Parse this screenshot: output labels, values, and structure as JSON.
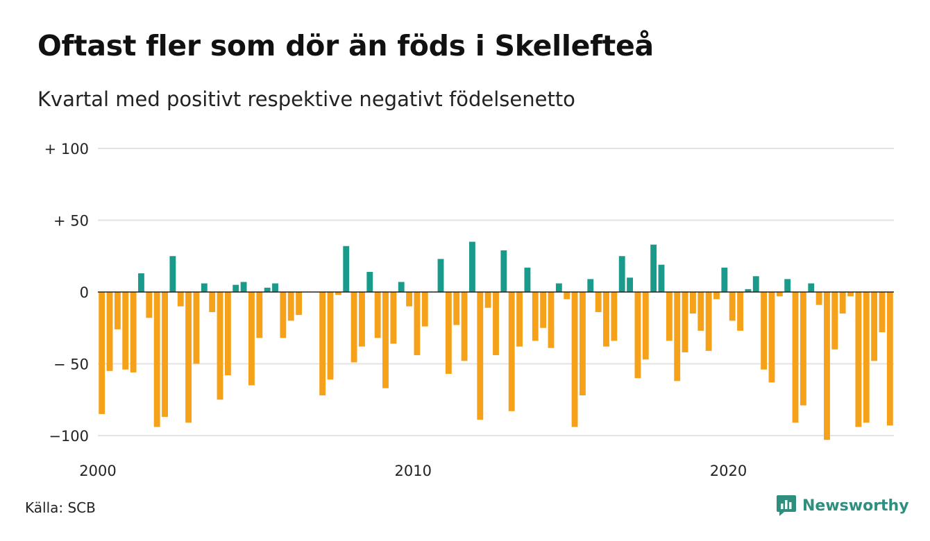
{
  "title": "Oftast fler som dör än föds i Skellefteå",
  "subtitle": "Kvartal med positivt respektive negativt födelsenetto",
  "source": "Källa: SCB",
  "brand": {
    "name": "Newsworthy",
    "icon": "newsworthy-chart-logo-icon"
  },
  "colors": {
    "positive": "#1a9a8a",
    "negative": "#f5a11a",
    "gridline": "#e3e3e3",
    "zero_line": "#222222"
  },
  "chart_data": {
    "type": "bar",
    "xlabel": "",
    "ylabel": "",
    "ylim": [
      -110,
      100
    ],
    "yticks": [
      {
        "value": 100,
        "label": "+ 100"
      },
      {
        "value": 50,
        "label": "+  50"
      },
      {
        "value": 0,
        "label": "0"
      },
      {
        "value": -50,
        "label": "− 50"
      },
      {
        "value": -100,
        "label": "−100"
      }
    ],
    "xticks": [
      {
        "value": 2000,
        "label": "2000"
      },
      {
        "value": 2010,
        "label": "2010"
      },
      {
        "value": 2020,
        "label": "2020"
      }
    ],
    "x_start": "2000 Q1",
    "values": [
      -85,
      -55,
      -26,
      -54,
      -56,
      13,
      -18,
      -94,
      -87,
      25,
      -10,
      -91,
      -50,
      6,
      -14,
      -75,
      -58,
      5,
      7,
      -65,
      -32,
      3,
      6,
      -32,
      -20,
      -16,
      0,
      0,
      -72,
      -61,
      -2,
      32,
      -49,
      -38,
      14,
      -32,
      -67,
      -36,
      7,
      -10,
      -44,
      -24,
      0,
      23,
      -57,
      -23,
      -48,
      35,
      -89,
      -11,
      -44,
      29,
      -83,
      -38,
      17,
      -34,
      -25,
      -39,
      6,
      -5,
      -94,
      -72,
      9,
      -14,
      -38,
      -34,
      25,
      10,
      -60,
      -47,
      33,
      19,
      -34,
      -62,
      -42,
      -15,
      -27,
      -41,
      -5,
      17,
      -20,
      -27,
      2,
      11,
      -54,
      -63,
      -3,
      9,
      -91,
      -79,
      6,
      -9,
      -103,
      -40,
      -15,
      -3,
      -94,
      -91,
      -48,
      -28,
      -93
    ]
  }
}
